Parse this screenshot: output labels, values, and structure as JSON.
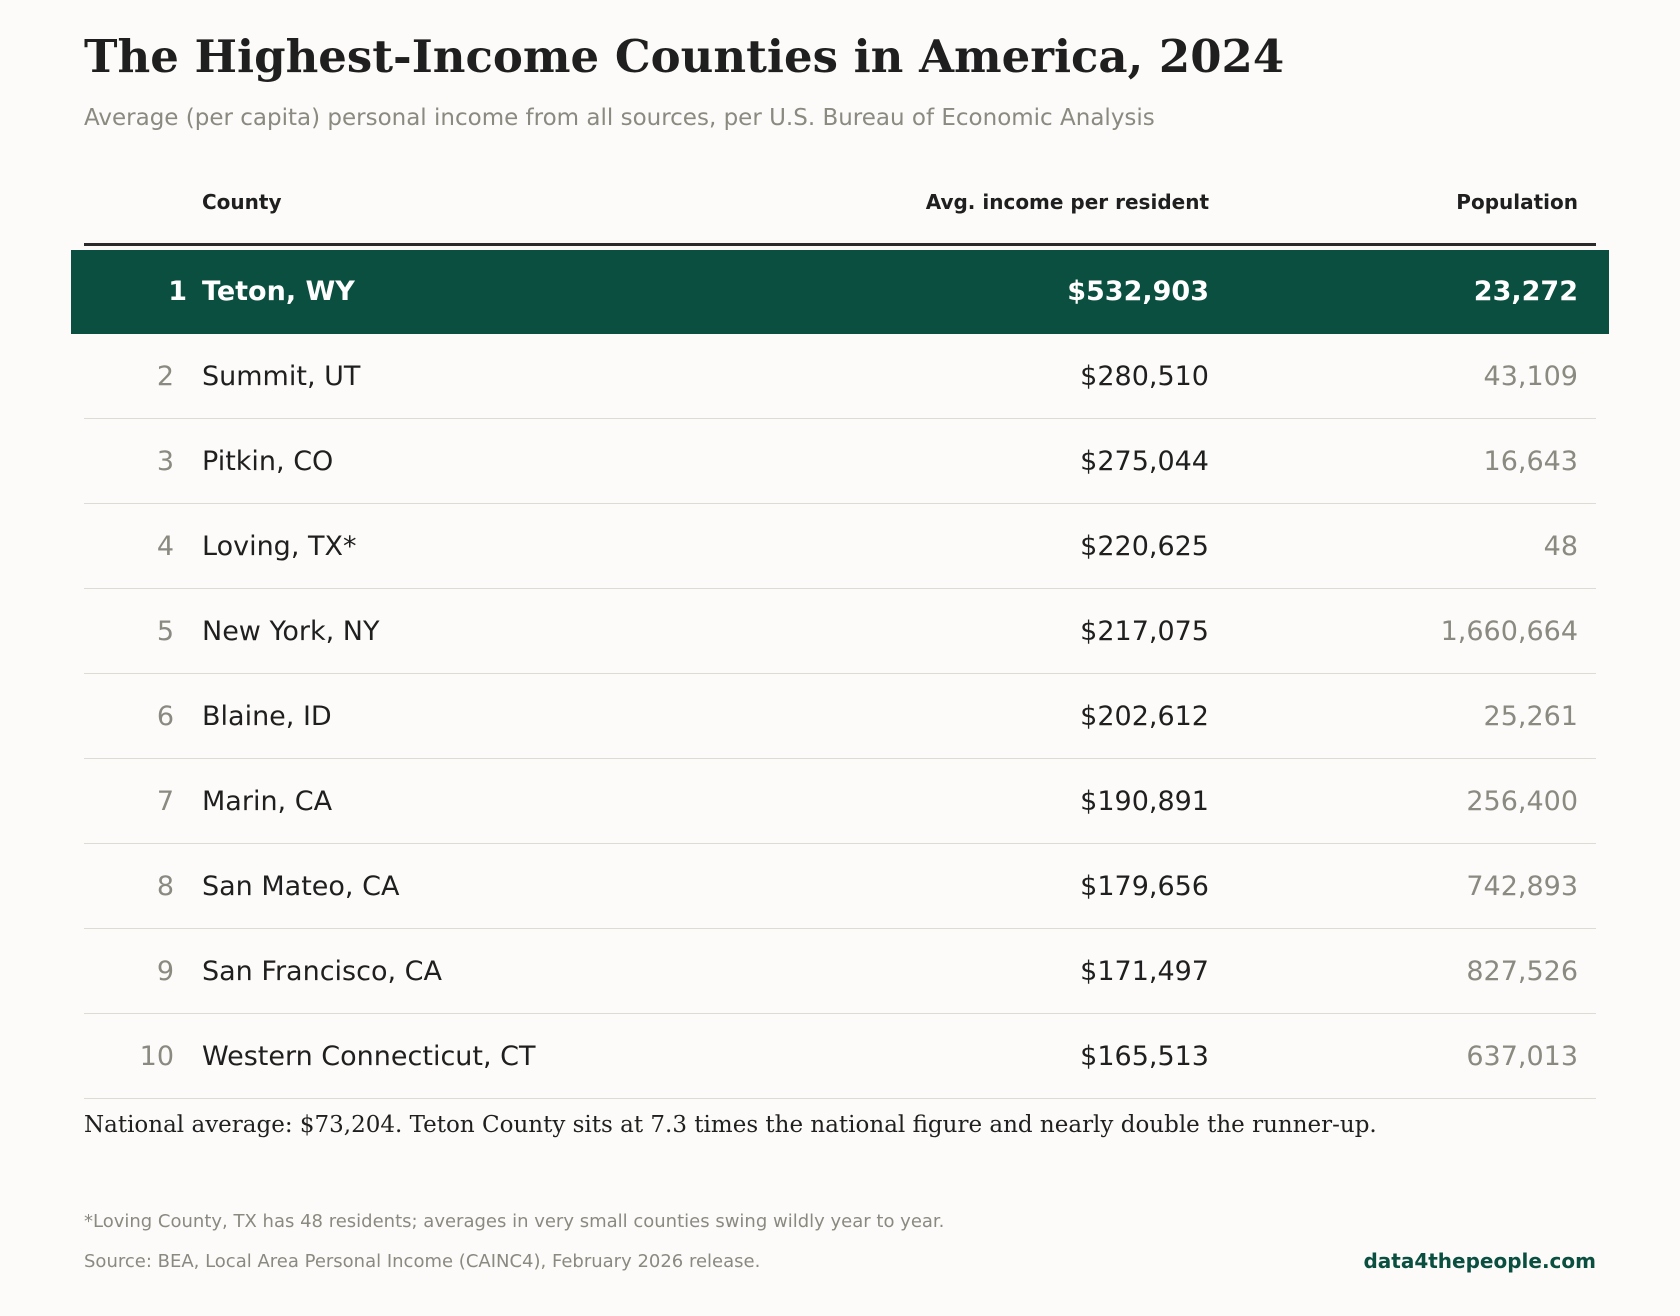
{
  "colors": {
    "accent": "#0a4f40",
    "muted_text": "#8a8a80",
    "background": "#fcfbf9"
  },
  "chart_data": {
    "type": "table",
    "title": "The Highest-Income Counties in America, 2024",
    "subtitle": "Average (per capita) personal income from all sources, per U.S. Bureau of Economic Analysis",
    "columns": [
      "County",
      "Avg. income per resident",
      "Population"
    ],
    "highlighted_rank": 1,
    "rows": [
      {
        "rank": "1",
        "county": "Teton, WY",
        "income": "$532,903",
        "population": "23,272"
      },
      {
        "rank": "2",
        "county": "Summit, UT",
        "income": "$280,510",
        "population": "43,109"
      },
      {
        "rank": "3",
        "county": "Pitkin, CO",
        "income": "$275,044",
        "population": "16,643"
      },
      {
        "rank": "4",
        "county": "Loving, TX*",
        "income": "$220,625",
        "population": "48"
      },
      {
        "rank": "5",
        "county": "New York, NY",
        "income": "$217,075",
        "population": "1,660,664"
      },
      {
        "rank": "6",
        "county": "Blaine, ID",
        "income": "$202,612",
        "population": "25,261"
      },
      {
        "rank": "7",
        "county": "Marin, CA",
        "income": "$190,891",
        "population": "256,400"
      },
      {
        "rank": "8",
        "county": "San Mateo, CA",
        "income": "$179,656",
        "population": "742,893"
      },
      {
        "rank": "9",
        "county": "San Francisco, CA",
        "income": "$171,497",
        "population": "827,526"
      },
      {
        "rank": "10",
        "county": "Western Connecticut, CT",
        "income": "$165,513",
        "population": "637,013"
      }
    ],
    "note": "National average: $73,204. Teton County sits at 7.3 times the national figure and nearly double the runner-up.",
    "footnote": "*Loving County, TX has 48 residents; averages in very small counties swing wildly year to year.",
    "source": "Source: BEA, Local Area Personal Income (CAINC4), February 2026 release.",
    "brand": "data4thepeople.com"
  }
}
